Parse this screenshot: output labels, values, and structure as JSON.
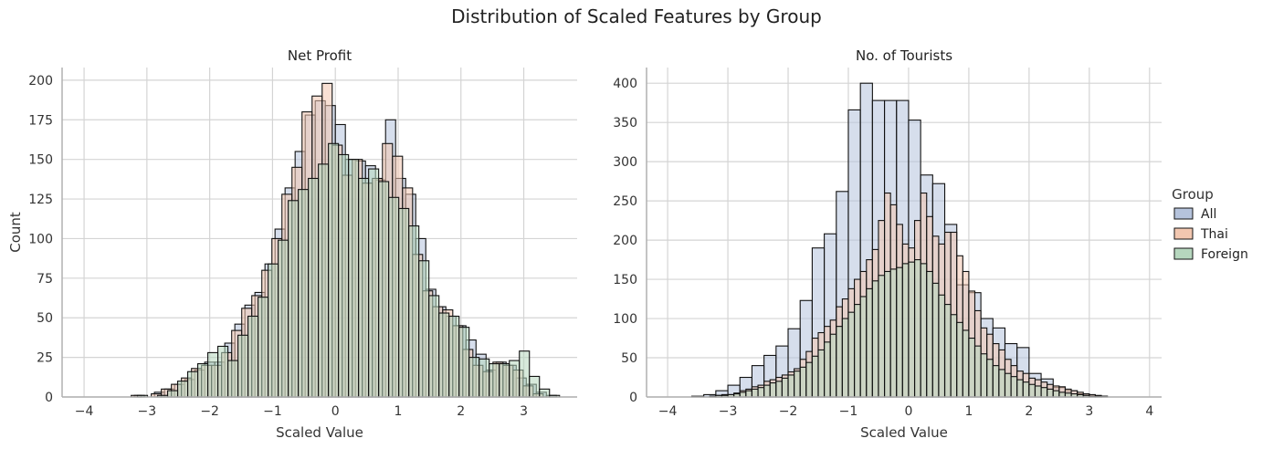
{
  "suptitle": "Distribution of Scaled Features by Group",
  "legend": {
    "title": "Group",
    "placement": "right",
    "entries": [
      {
        "label": "All",
        "color": "#b5c3dc"
      },
      {
        "label": "Thai",
        "color": "#f2c7b0"
      },
      {
        "label": "Foreign",
        "color": "#b6d7be"
      }
    ]
  },
  "chart_data": [
    {
      "type": "histogram",
      "title": "Net Profit",
      "xlabel": "Scaled Value",
      "ylabel": "Count",
      "xlim": [
        -4.35,
        3.85
      ],
      "ylim": [
        0,
        208
      ],
      "xticks": [
        -4,
        -3,
        -2,
        -1,
        0,
        1,
        2,
        3
      ],
      "yticks": [
        0,
        25,
        50,
        75,
        100,
        125,
        150,
        175,
        200
      ],
      "grid": true,
      "series": [
        {
          "name": "All",
          "color": "#b5c3dc",
          "bin_start": -3.2,
          "bin_width": 0.16,
          "values": [
            1,
            0,
            3,
            5,
            8,
            11,
            17,
            22,
            22,
            34,
            46,
            58,
            66,
            84,
            106,
            132,
            155,
            178,
            187,
            184,
            172,
            150,
            149,
            146,
            137,
            175,
            138,
            128,
            100,
            68,
            57,
            51,
            45,
            36,
            27,
            17,
            22,
            20,
            12,
            8,
            3,
            1
          ]
        },
        {
          "name": "Thai",
          "color": "#f2c7b0",
          "bin_start": -3.25,
          "bin_width": 0.16,
          "values": [
            1,
            0,
            2,
            5,
            8,
            12,
            18,
            20,
            20,
            28,
            42,
            56,
            64,
            80,
            100,
            128,
            145,
            180,
            190,
            198,
            159,
            140,
            150,
            135,
            138,
            160,
            152,
            132,
            90,
            67,
            57,
            55,
            45,
            30,
            20,
            16,
            22,
            20,
            17,
            7,
            2,
            0
          ]
        },
        {
          "name": "Foreign",
          "color": "#b6d7be",
          "bin_start": -3.15,
          "bin_width": 0.16,
          "values": [
            1,
            0,
            1,
            4,
            10,
            16,
            21,
            28,
            32,
            23,
            39,
            51,
            63,
            84,
            99,
            124,
            131,
            138,
            147,
            160,
            153,
            150,
            138,
            144,
            136,
            126,
            119,
            108,
            86,
            64,
            53,
            51,
            44,
            25,
            24,
            21,
            21,
            23,
            29,
            13,
            5,
            1
          ]
        }
      ]
    },
    {
      "type": "histogram",
      "title": "No. of Tourists",
      "xlabel": "Scaled Value",
      "ylabel": "",
      "xlim": [
        -4.35,
        4.2
      ],
      "ylim": [
        0,
        420
      ],
      "xticks": [
        -4,
        -3,
        -2,
        -1,
        0,
        1,
        2,
        3,
        4
      ],
      "yticks": [
        0,
        50,
        100,
        150,
        200,
        250,
        300,
        350,
        400
      ],
      "grid": true,
      "series": [
        {
          "name": "All",
          "color": "#b5c3dc",
          "bin_start": -3.6,
          "bin_width": 0.2,
          "values": [
            1,
            3,
            8,
            15,
            25,
            40,
            53,
            65,
            87,
            123,
            190,
            208,
            262,
            366,
            400,
            378,
            378,
            378,
            353,
            283,
            272,
            220,
            143,
            133,
            100,
            88,
            68,
            63,
            30,
            23,
            12,
            8,
            4
          ]
        },
        {
          "name": "Thai",
          "color": "#f2c7b0",
          "bin_start": -3.3,
          "bin_width": 0.1,
          "values": [
            1,
            2,
            3,
            3,
            5,
            8,
            10,
            13,
            15,
            20,
            22,
            25,
            28,
            32,
            36,
            48,
            58,
            75,
            82,
            90,
            98,
            115,
            125,
            138,
            150,
            160,
            175,
            188,
            225,
            260,
            245,
            220,
            195,
            190,
            225,
            260,
            230,
            205,
            195,
            210,
            210,
            180,
            160,
            135,
            110,
            88,
            80,
            68,
            60,
            48,
            40,
            33,
            30,
            24,
            22,
            19,
            16,
            14,
            13,
            10,
            8,
            6,
            4,
            3,
            2,
            1
          ]
        },
        {
          "name": "Foreign",
          "color": "#b6d7be",
          "bin_start": -3.3,
          "bin_width": 0.1,
          "values": [
            1,
            2,
            2,
            3,
            4,
            6,
            8,
            10,
            12,
            15,
            18,
            20,
            24,
            28,
            33,
            38,
            44,
            52,
            60,
            70,
            80,
            90,
            100,
            108,
            118,
            128,
            138,
            148,
            155,
            160,
            163,
            165,
            170,
            172,
            175,
            170,
            160,
            145,
            130,
            118,
            105,
            95,
            85,
            75,
            65,
            55,
            48,
            40,
            35,
            30,
            26,
            22,
            19,
            16,
            14,
            12,
            10,
            8,
            6,
            5,
            4,
            3,
            2,
            1,
            1,
            1
          ]
        }
      ]
    }
  ]
}
